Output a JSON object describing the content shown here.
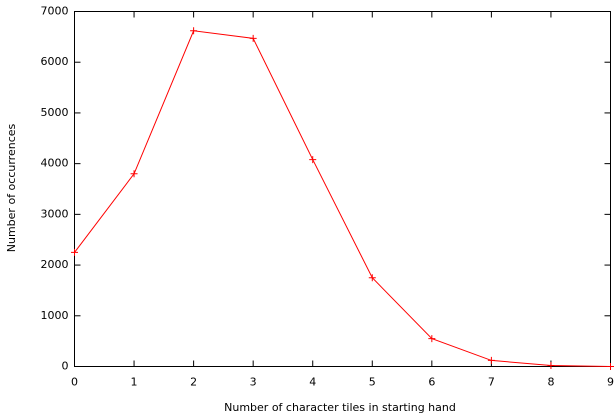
{
  "chart_data": {
    "type": "line",
    "x_label": "Number of character tiles in starting hand",
    "y_label": "Number of occurrences",
    "x": [
      0,
      1,
      2,
      3,
      4,
      5,
      6,
      7,
      8,
      9
    ],
    "values": [
      2250,
      3800,
      6620,
      6470,
      4080,
      1750,
      550,
      120,
      20,
      0
    ],
    "color": "#ff0000",
    "xlim": [
      0,
      9
    ],
    "xticks": [
      0,
      1,
      2,
      3,
      4,
      5,
      6,
      7,
      8,
      9
    ],
    "ylim": [
      0,
      7000
    ],
    "yticks": [
      0,
      1000,
      2000,
      3000,
      4000,
      5000,
      6000,
      7000
    ],
    "grid": false
  }
}
